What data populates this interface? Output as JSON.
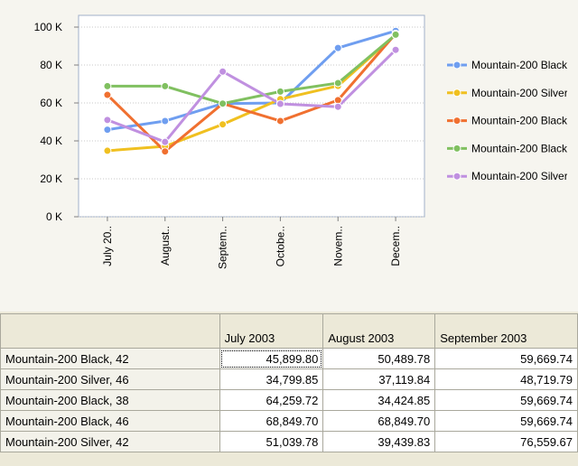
{
  "chart_data": {
    "type": "line",
    "categories": [
      "July 20..",
      "August..",
      "Septem..",
      "Octobe..",
      "Novem..",
      "Decem.."
    ],
    "series": [
      {
        "name": "Mountain-200 Black, 42",
        "color": "#6f9ef0",
        "values": [
          45899.8,
          50489.78,
          59669.74,
          60000,
          89000,
          98000
        ]
      },
      {
        "name": "Mountain-200 Silver, 46",
        "color": "#f0c020",
        "values": [
          34799.85,
          37119.84,
          48719.79,
          62000,
          69000,
          96000
        ]
      },
      {
        "name": "Mountain-200 Black, 38",
        "color": "#f07030",
        "values": [
          64259.72,
          34424.85,
          59669.74,
          50500,
          61500,
          96500
        ]
      },
      {
        "name": "Mountain-200 Black, 46",
        "color": "#80c060",
        "values": [
          68849.7,
          68849.7,
          59669.74,
          66000,
          70500,
          96000
        ]
      },
      {
        "name": "Mountain-200 Silver, 42",
        "color": "#c090e0",
        "values": [
          51039.78,
          39439.83,
          76559.67,
          59500,
          58000,
          88000
        ]
      }
    ],
    "ylim": [
      0,
      100000
    ],
    "yticks": [
      {
        "value": 0,
        "label": "0 K"
      },
      {
        "value": 20000,
        "label": "20 K"
      },
      {
        "value": 40000,
        "label": "40 K"
      },
      {
        "value": 60000,
        "label": "60 K"
      },
      {
        "value": 80000,
        "label": "80 K"
      },
      {
        "value": 100000,
        "label": "100 K"
      }
    ],
    "grid": true,
    "legend": "right"
  },
  "table": {
    "columns": [
      "July 2003",
      "August 2003",
      "September 2003"
    ],
    "rows": [
      {
        "name": "Mountain-200 Black, 42",
        "cells": [
          "45,899.80",
          "50,489.78",
          "59,669.74"
        ]
      },
      {
        "name": "Mountain-200 Silver, 46",
        "cells": [
          "34,799.85",
          "37,119.84",
          "48,719.79"
        ]
      },
      {
        "name": "Mountain-200 Black, 38",
        "cells": [
          "64,259.72",
          "34,424.85",
          "59,669.74"
        ]
      },
      {
        "name": "Mountain-200 Black, 46",
        "cells": [
          "68,849.70",
          "68,849.70",
          "59,669.74"
        ]
      },
      {
        "name": "Mountain-200 Silver, 42",
        "cells": [
          "51,039.78",
          "39,439.83",
          "76,559.67"
        ]
      }
    ]
  }
}
